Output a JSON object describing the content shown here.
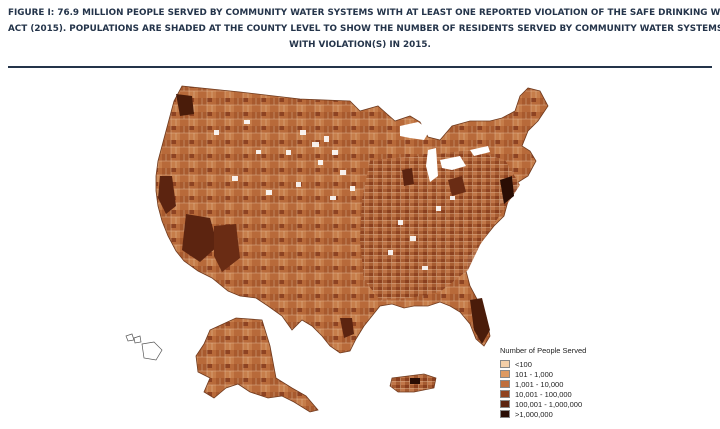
{
  "figure": {
    "caption_lines": [
      "FIGURE I: 76.9 MILLION PEOPLE SERVED BY COMMUNITY WATER SYSTEMS WITH AT LEAST ONE REPORTED VIOLATION OF THE SAFE DRINKING WATER",
      "ACT (2015). POPULATIONS ARE SHADED AT THE COUNTY LEVEL TO SHOW THE NUMBER OF RESIDENTS SERVED BY COMMUNITY WATER SYSTEMS",
      "WITH VIOLATION(S) IN 2015."
    ]
  },
  "map": {
    "regions_shown": [
      "contiguous-us",
      "alaska",
      "hawaii",
      "puerto-rico"
    ],
    "background_color": "#ffffff",
    "no_data_color": "#ffffff"
  },
  "legend": {
    "title": "Number of People Served",
    "items": [
      {
        "label": "<100",
        "color": "#f4cfa8"
      },
      {
        "label": "101 - 1,000",
        "color": "#dd9961"
      },
      {
        "label": "1,001 - 10,000",
        "color": "#bf6e3c"
      },
      {
        "label": "10,001 - 100,000",
        "color": "#8f4320"
      },
      {
        "label": "100,001 - 1,000,000",
        "color": "#5c2410"
      },
      {
        "label": ">1,000,000",
        "color": "#2a0d04"
      }
    ]
  }
}
